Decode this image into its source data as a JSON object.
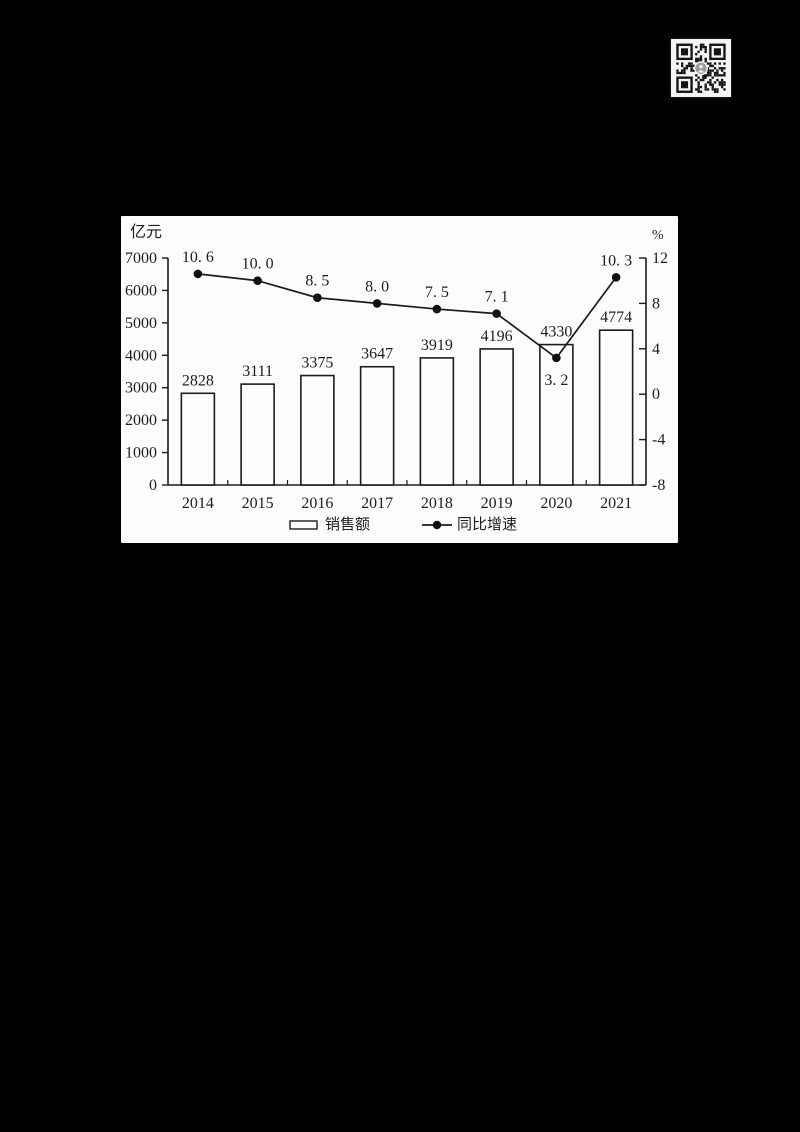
{
  "qr_code": {
    "name": "qr-code",
    "style": "black-modules-on-white",
    "center_logo": "circular-avatar"
  },
  "chart_data": {
    "type": "bar",
    "title": "",
    "categories": [
      "2014",
      "2015",
      "2016",
      "2017",
      "2018",
      "2019",
      "2020",
      "2021"
    ],
    "series": [
      {
        "name": "销售额",
        "type": "bar",
        "axis": "left",
        "values": [
          2828,
          3111,
          3375,
          3647,
          3919,
          4196,
          4330,
          4774
        ],
        "labels": [
          "2828",
          "3111",
          "3375",
          "3647",
          "3919",
          "4196",
          "4330",
          "4774"
        ]
      },
      {
        "name": "同比增速",
        "type": "line",
        "axis": "right",
        "values": [
          10.6,
          10.0,
          8.5,
          8.0,
          7.5,
          7.1,
          3.2,
          10.3
        ],
        "labels": [
          "10. 6",
          "10. 0",
          "8. 5",
          "8. 0",
          "7. 5",
          "7. 1",
          "3. 2",
          "10. 3"
        ],
        "label_below_indices": [
          6
        ]
      }
    ],
    "left_axis": {
      "unit": "亿元",
      "min": 0,
      "max": 7000,
      "step": 1000,
      "tick_labels": [
        "0",
        "1000",
        "2000",
        "3000",
        "4000",
        "5000",
        "6000",
        "7000"
      ]
    },
    "right_axis": {
      "unit": "%",
      "min": -8,
      "max": 12,
      "step": 4,
      "tick_labels": [
        "-8",
        "-4",
        "0",
        "4",
        "8",
        "12"
      ]
    },
    "legend": [
      {
        "label": "销售额",
        "marker": "bar-swatch"
      },
      {
        "label": "同比增速",
        "marker": "line-dot"
      }
    ],
    "legend_position": "bottom",
    "grid": false,
    "colors": {
      "stroke": "#1c1c1c",
      "bar_fill": "#fdfdfd",
      "text": "#1d1d1d",
      "panel": "#fcfcfc",
      "page_bg": "#000000"
    }
  }
}
